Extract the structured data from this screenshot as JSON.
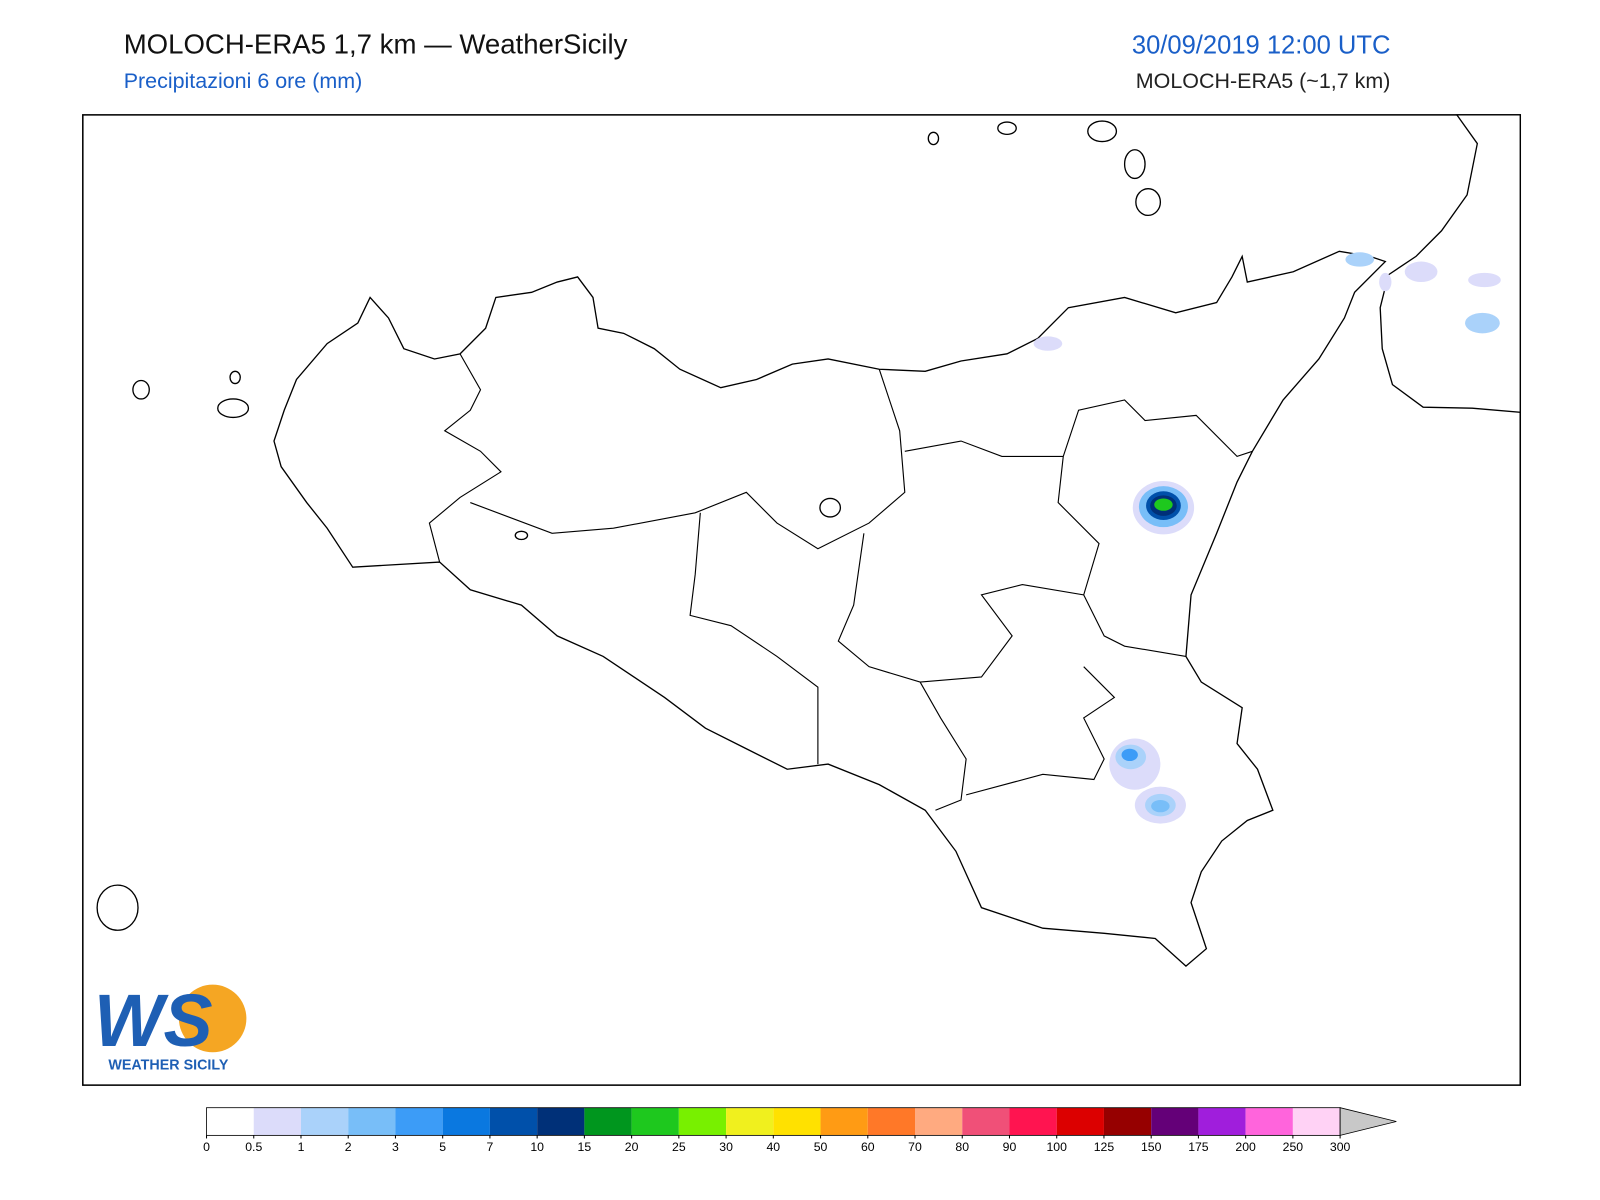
{
  "header": {
    "title": "MOLOCH-ERA5 1,7 km — WeatherSicily",
    "subtitle": "Precipitazioni 6 ore (mm)",
    "date": "30/09/2019 12:00 UTC",
    "model": "MOLOCH-ERA5 (~1,7 km)"
  },
  "logo": {
    "mark": "WS",
    "caption": "WEATHER SICILY"
  },
  "colorbar": {
    "levels": [
      0,
      0.5,
      1,
      2,
      3,
      5,
      7,
      10,
      15,
      20,
      25,
      30,
      40,
      50,
      60,
      70,
      80,
      90,
      100,
      125,
      150,
      175,
      200,
      250,
      300
    ],
    "colors": [
      "#ffffff",
      "#dcdcfa",
      "#aad2fa",
      "#78bef8",
      "#3c9cf7",
      "#0a78e0",
      "#0050aa",
      "#003078",
      "#00961e",
      "#1ec81e",
      "#78f000",
      "#f0f01e",
      "#ffe100",
      "#ff9b14",
      "#ff7828",
      "#ffaa80",
      "#f05078",
      "#ff1450",
      "#dc0000",
      "#960000",
      "#640078",
      "#a01edc",
      "#ff64dc",
      "#ffd2f5"
    ],
    "extend_color": "#c8c8c8"
  }
}
